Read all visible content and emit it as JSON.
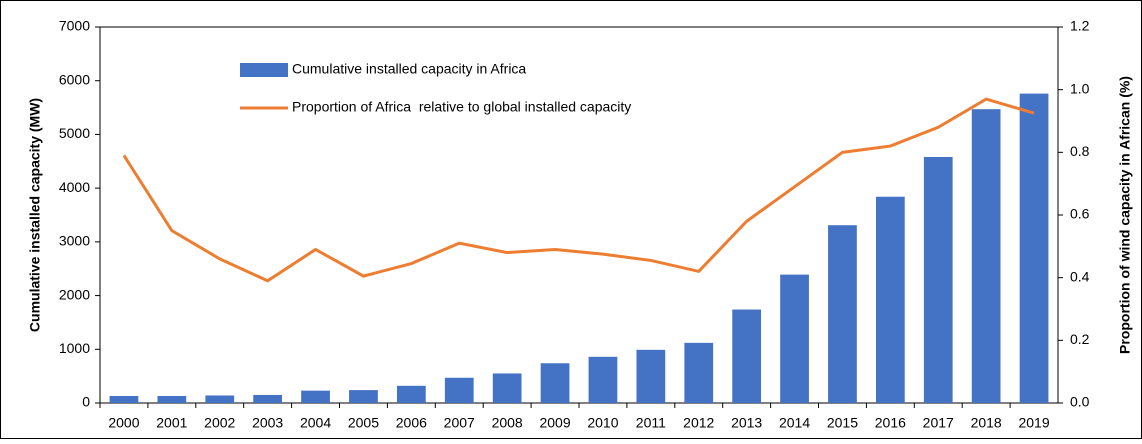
{
  "chart_data": {
    "type": "bar_line",
    "categories": [
      "2000",
      "2001",
      "2002",
      "2003",
      "2004",
      "2005",
      "2006",
      "2007",
      "2008",
      "2009",
      "2010",
      "2011",
      "2012",
      "2013",
      "2014",
      "2015",
      "2016",
      "2017",
      "2018",
      "2019"
    ],
    "series": [
      {
        "name": "Cumulative installed capacity in Africa",
        "type": "bar",
        "color": "#4472c4",
        "values": [
          130,
          130,
          140,
          150,
          230,
          240,
          320,
          470,
          550,
          740,
          860,
          990,
          1120,
          1740,
          2390,
          3310,
          3840,
          4580,
          5470,
          5760
        ]
      },
      {
        "name": "Proportion of Africa  relative to global installed capacity",
        "type": "line",
        "axis": "y2",
        "color": "#ed7d31",
        "values": [
          0.79,
          0.55,
          0.46,
          0.39,
          0.49,
          0.405,
          0.445,
          0.51,
          0.48,
          0.49,
          0.475,
          0.455,
          0.42,
          0.58,
          0.69,
          0.8,
          0.82,
          0.88,
          0.97,
          0.925
        ]
      }
    ],
    "ylabel": "Cumulative installed capacity (MW)",
    "y2label": "Proportion of wind capacity in African (%)",
    "ylim": [
      0,
      7000
    ],
    "yticks": [
      0,
      1000,
      2000,
      3000,
      4000,
      5000,
      6000,
      7000
    ],
    "y2lim": [
      0,
      1.2
    ],
    "y2ticks": [
      {
        "value": 0,
        "label": "0.0"
      },
      0.2,
      0.4,
      0.6,
      0.8,
      {
        "value": 1,
        "label": "1.0"
      },
      1.2
    ]
  }
}
